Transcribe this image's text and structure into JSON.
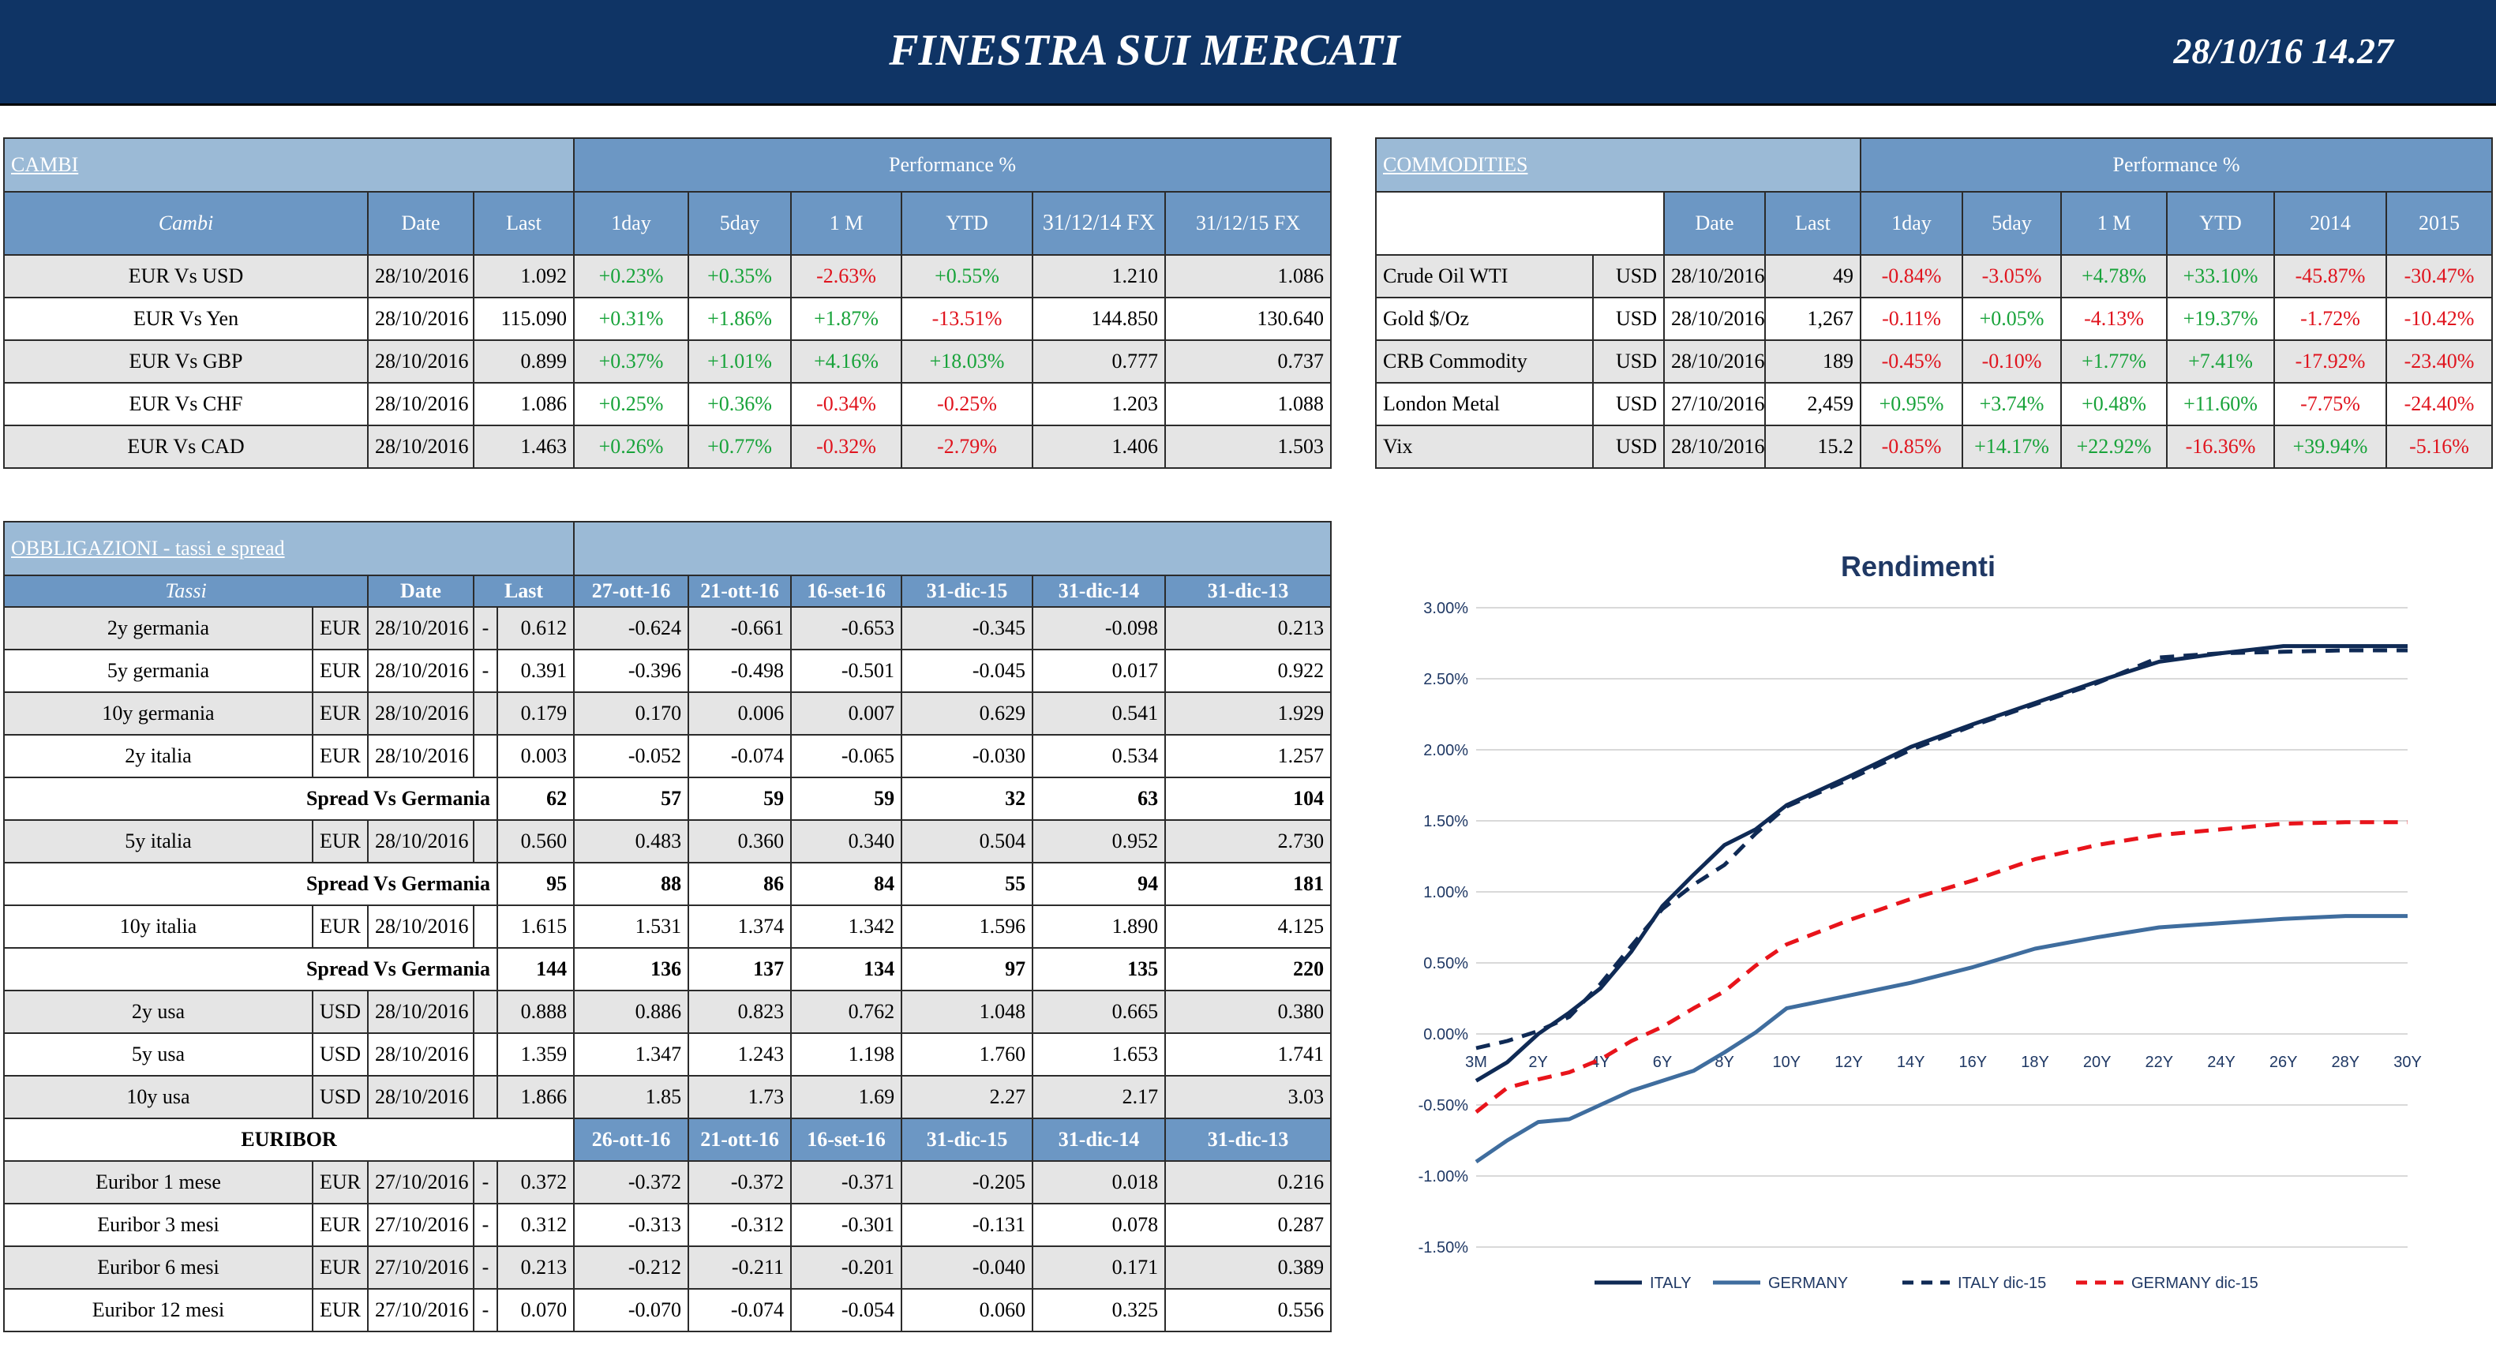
{
  "header": {
    "title": "FINESTRA SUI MERCATI",
    "timestamp": "28/10/16 14.27"
  },
  "cambi": {
    "title": "CAMBI",
    "performance_label": "Performance  %",
    "columns": [
      "Cambi",
      "Date",
      "Last",
      "1day",
      "5day",
      "1 M",
      "YTD",
      "31/12/14 FX",
      "31/12/15  FX"
    ],
    "rows": [
      {
        "name": "EUR Vs USD",
        "date": "28/10/2016",
        "last": "1.092",
        "d1": "+0.23%",
        "d5": "+0.35%",
        "m1": "-2.63%",
        "ytd": "+0.55%",
        "fx14": "1.210",
        "fx15": "1.086"
      },
      {
        "name": "EUR Vs Yen",
        "date": "28/10/2016",
        "last": "115.090",
        "d1": "+0.31%",
        "d5": "+1.86%",
        "m1": "+1.87%",
        "ytd": "-13.51%",
        "fx14": "144.850",
        "fx15": "130.640"
      },
      {
        "name": "EUR Vs GBP",
        "date": "28/10/2016",
        "last": "0.899",
        "d1": "+0.37%",
        "d5": "+1.01%",
        "m1": "+4.16%",
        "ytd": "+18.03%",
        "fx14": "0.777",
        "fx15": "0.737"
      },
      {
        "name": "EUR Vs CHF",
        "date": "28/10/2016",
        "last": "1.086",
        "d1": "+0.25%",
        "d5": "+0.36%",
        "m1": "-0.34%",
        "ytd": "-0.25%",
        "fx14": "1.203",
        "fx15": "1.088"
      },
      {
        "name": "EUR Vs CAD",
        "date": "28/10/2016",
        "last": "1.463",
        "d1": "+0.26%",
        "d5": "+0.77%",
        "m1": "-0.32%",
        "ytd": "-2.79%",
        "fx14": "1.406",
        "fx15": "1.503"
      }
    ]
  },
  "commodities": {
    "title": "COMMODITIES",
    "performance_label": "Performance  %",
    "columns": [
      "Date",
      "Last",
      "1day",
      "5day",
      "1 M",
      "YTD",
      "2014",
      "2015"
    ],
    "rows": [
      {
        "name": "Crude Oil WTI",
        "cur": "USD",
        "date": "28/10/2016",
        "last": "49",
        "d1": "-0.84%",
        "d5": "-3.05%",
        "m1": "+4.78%",
        "ytd": "+33.10%",
        "y14": "-45.87%",
        "y15": "-30.47%"
      },
      {
        "name": "Gold $/Oz",
        "cur": "USD",
        "date": "28/10/2016",
        "last": "1,267",
        "d1": "-0.11%",
        "d5": "+0.05%",
        "m1": "-4.13%",
        "ytd": "+19.37%",
        "y14": "-1.72%",
        "y15": "-10.42%"
      },
      {
        "name": "CRB Commodity",
        "cur": "USD",
        "date": "28/10/2016",
        "last": "189",
        "d1": "-0.45%",
        "d5": "-0.10%",
        "m1": "+1.77%",
        "ytd": "+7.41%",
        "y14": "-17.92%",
        "y15": "-23.40%"
      },
      {
        "name": "London Metal",
        "cur": "USD",
        "date": "27/10/2016",
        "last": "2,459",
        "d1": "+0.95%",
        "d5": "+3.74%",
        "m1": "+0.48%",
        "ytd": "+11.60%",
        "y14": "-7.75%",
        "y15": "-24.40%"
      },
      {
        "name": "Vix",
        "cur": "USD",
        "date": "28/10/2016",
        "last": "15.2",
        "d1": "-0.85%",
        "d5": "+14.17%",
        "m1": "+22.92%",
        "ytd": "-16.36%",
        "y14": "+39.94%",
        "y15": "-5.16%"
      }
    ]
  },
  "obbligazioni": {
    "title": "OBBLIGAZIONI - tassi e spread",
    "columns": [
      "Tassi",
      "Date",
      "Last",
      "27-ott-16",
      "21-ott-16",
      "16-set-16",
      "31-dic-15",
      "31-dic-14",
      "31-dic-13"
    ],
    "spread_label": "Spread Vs Germania",
    "rows": [
      {
        "type": "row",
        "name": "2y germania",
        "cur": "EUR",
        "date": "28/10/2016",
        "dash": "-",
        "last": "0.612",
        "v": [
          "-0.624",
          "-0.661",
          "-0.653",
          "-0.345",
          "-0.098",
          "0.213"
        ]
      },
      {
        "type": "row",
        "name": "5y germania",
        "cur": "EUR",
        "date": "28/10/2016",
        "dash": "-",
        "last": "0.391",
        "v": [
          "-0.396",
          "-0.498",
          "-0.501",
          "-0.045",
          "0.017",
          "0.922"
        ]
      },
      {
        "type": "row",
        "name": "10y germania",
        "cur": "EUR",
        "date": "28/10/2016",
        "dash": "",
        "last": "0.179",
        "v": [
          "0.170",
          "0.006",
          "0.007",
          "0.629",
          "0.541",
          "1.929"
        ]
      },
      {
        "type": "row",
        "name": "2y italia",
        "cur": "EUR",
        "date": "28/10/2016",
        "dash": "",
        "last": "0.003",
        "v": [
          "-0.052",
          "-0.074",
          "-0.065",
          "-0.030",
          "0.534",
          "1.257"
        ]
      },
      {
        "type": "spread",
        "last": "62",
        "v": [
          "57",
          "59",
          "59",
          "32",
          "63",
          "104"
        ]
      },
      {
        "type": "row",
        "name": "5y italia",
        "cur": "EUR",
        "date": "28/10/2016",
        "dash": "",
        "last": "0.560",
        "v": [
          "0.483",
          "0.360",
          "0.340",
          "0.504",
          "0.952",
          "2.730"
        ]
      },
      {
        "type": "spread",
        "last": "95",
        "v": [
          "88",
          "86",
          "84",
          "55",
          "94",
          "181"
        ]
      },
      {
        "type": "row",
        "name": "10y italia",
        "cur": "EUR",
        "date": "28/10/2016",
        "dash": "",
        "last": "1.615",
        "v": [
          "1.531",
          "1.374",
          "1.342",
          "1.596",
          "1.890",
          "4.125"
        ]
      },
      {
        "type": "spread",
        "last": "144",
        "v": [
          "136",
          "137",
          "134",
          "97",
          "135",
          "220"
        ]
      },
      {
        "type": "row",
        "name": "2y usa",
        "cur": "USD",
        "date": "28/10/2016",
        "dash": "",
        "last": "0.888",
        "v": [
          "0.886",
          "0.823",
          "0.762",
          "1.048",
          "0.665",
          "0.380"
        ]
      },
      {
        "type": "row",
        "name": "5y usa",
        "cur": "USD",
        "date": "28/10/2016",
        "dash": "",
        "last": "1.359",
        "v": [
          "1.347",
          "1.243",
          "1.198",
          "1.760",
          "1.653",
          "1.741"
        ]
      },
      {
        "type": "row",
        "name": "10y usa",
        "cur": "USD",
        "date": "28/10/2016",
        "dash": "",
        "last": "1.866",
        "v": [
          "1.85",
          "1.73",
          "1.69",
          "2.27",
          "2.17",
          "3.03"
        ]
      }
    ]
  },
  "euribor": {
    "title": "EURIBOR",
    "columns": [
      "26-ott-16",
      "21-ott-16",
      "16-set-16",
      "31-dic-15",
      "31-dic-14",
      "31-dic-13"
    ],
    "rows": [
      {
        "name": "Euribor 1 mese",
        "cur": "EUR",
        "date": "27/10/2016",
        "dash": "-",
        "last": "0.372",
        "v": [
          "-0.372",
          "-0.372",
          "-0.371",
          "-0.205",
          "0.018",
          "0.216"
        ]
      },
      {
        "name": "Euribor 3 mesi",
        "cur": "EUR",
        "date": "27/10/2016",
        "dash": "-",
        "last": "0.312",
        "v": [
          "-0.313",
          "-0.312",
          "-0.301",
          "-0.131",
          "0.078",
          "0.287"
        ]
      },
      {
        "name": "Euribor 6 mesi",
        "cur": "EUR",
        "date": "27/10/2016",
        "dash": "-",
        "last": "0.213",
        "v": [
          "-0.212",
          "-0.211",
          "-0.201",
          "-0.040",
          "0.171",
          "0.389"
        ]
      },
      {
        "name": "Euribor 12 mesi",
        "cur": "EUR",
        "date": "27/10/2016",
        "dash": "-",
        "last": "0.070",
        "v": [
          "-0.070",
          "-0.074",
          "-0.054",
          "0.060",
          "0.325",
          "0.556"
        ]
      }
    ]
  },
  "colors": {
    "header_bg": "#0f3465",
    "section_bg": "#9bbad6",
    "column_header_bg": "#6c97c4",
    "positive": "#18a33a",
    "negative": "#e0141e"
  },
  "chart_data": {
    "type": "line",
    "title": "Rendimenti",
    "categories": [
      "3M",
      "2Y",
      "4Y",
      "6Y",
      "8Y",
      "10Y",
      "12Y",
      "14Y",
      "16Y",
      "18Y",
      "20Y",
      "22Y",
      "24Y",
      "26Y",
      "28Y",
      "30Y"
    ],
    "x_positions": [
      0,
      1,
      2,
      3,
      4,
      5,
      6,
      7,
      8,
      9,
      10,
      11,
      12,
      13,
      14,
      15
    ],
    "ylim": [
      -1.5,
      3.0
    ],
    "yticks": [
      "3.00%",
      "2.50%",
      "2.00%",
      "1.50%",
      "1.00%",
      "0.50%",
      "0.00%",
      "-0.50%",
      "-1.00%",
      "-1.50%"
    ],
    "ytick_values": [
      3.0,
      2.5,
      2.0,
      1.5,
      1.0,
      0.5,
      0.0,
      -0.5,
      -1.0,
      -1.5
    ],
    "grid": true,
    "legend_position": "bottom",
    "series": [
      {
        "name": "ITALY",
        "color": "#0f2a55",
        "dash": false,
        "x": [
          0,
          0.5,
          1,
          1.5,
          2,
          2.5,
          3,
          3.5,
          4,
          4.5,
          5,
          6,
          7,
          8,
          9,
          10,
          11,
          12,
          13,
          14,
          15
        ],
        "values": [
          -0.33,
          -0.2,
          0.0,
          0.15,
          0.32,
          0.58,
          0.9,
          1.12,
          1.33,
          1.44,
          1.61,
          1.81,
          2.02,
          2.18,
          2.33,
          2.48,
          2.62,
          2.68,
          2.73,
          2.73,
          2.73
        ]
      },
      {
        "name": "GERMANY",
        "color": "#3f6d9e",
        "dash": false,
        "x": [
          0,
          0.5,
          1,
          1.5,
          2,
          2.5,
          3,
          3.5,
          4,
          4.5,
          5,
          6,
          7,
          8,
          9,
          10,
          11,
          12,
          13,
          14,
          15
        ],
        "values": [
          -0.9,
          -0.75,
          -0.62,
          -0.6,
          -0.5,
          -0.4,
          -0.33,
          -0.26,
          -0.13,
          0.01,
          0.18,
          0.27,
          0.36,
          0.47,
          0.6,
          0.68,
          0.75,
          0.78,
          0.81,
          0.83,
          0.83
        ]
      },
      {
        "name": "ITALY dic-15",
        "color": "#0f2a55",
        "dash": true,
        "x": [
          0,
          0.5,
          1,
          1.5,
          2,
          2.5,
          3,
          3.5,
          4,
          4.5,
          5,
          6,
          7,
          8,
          9,
          10,
          11,
          12,
          13,
          14,
          15
        ],
        "values": [
          -0.1,
          -0.05,
          0.02,
          0.12,
          0.35,
          0.62,
          0.88,
          1.05,
          1.19,
          1.41,
          1.6,
          1.79,
          2.0,
          2.17,
          2.32,
          2.47,
          2.65,
          2.68,
          2.69,
          2.7,
          2.7
        ]
      },
      {
        "name": "GERMANY dic-15",
        "color": "#e8141b",
        "dash": true,
        "x": [
          0,
          0.5,
          1,
          1.5,
          2,
          2.5,
          3,
          3.5,
          4,
          4.5,
          5,
          6,
          7,
          8,
          9,
          10,
          11,
          12,
          13,
          14,
          15
        ],
        "values": [
          -0.55,
          -0.38,
          -0.32,
          -0.27,
          -0.18,
          -0.05,
          0.05,
          0.18,
          0.3,
          0.48,
          0.63,
          0.8,
          0.95,
          1.08,
          1.23,
          1.33,
          1.4,
          1.44,
          1.48,
          1.49,
          1.49
        ]
      }
    ]
  }
}
